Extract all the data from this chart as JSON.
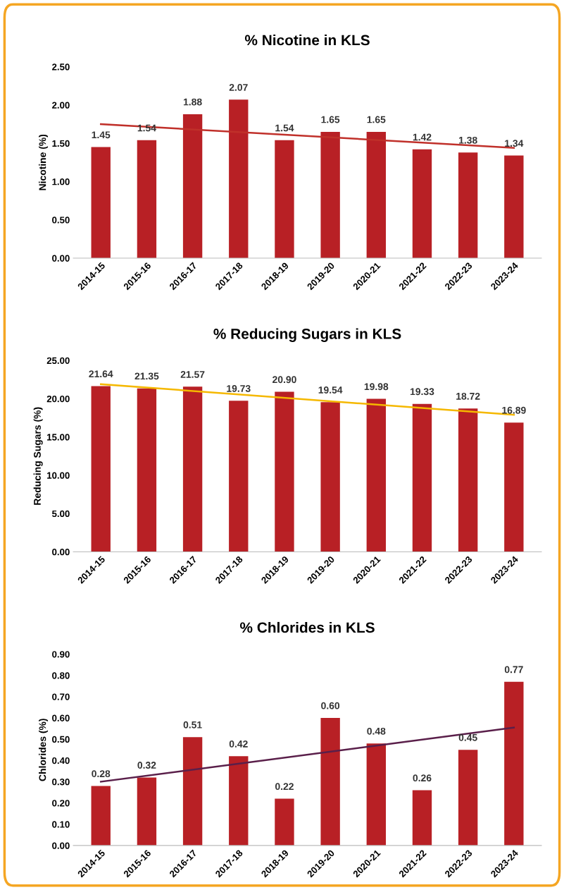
{
  "chart_data": [
    {
      "type": "bar",
      "title": "% Nicotine in KLS",
      "ylabel": "Nicotine (%)",
      "categories": [
        "2014-15",
        "2015-16",
        "2016-17",
        "2017-18",
        "2018-19",
        "2019-20",
        "2020-21",
        "2021-22",
        "2022-23",
        "2023-24"
      ],
      "series": [
        {
          "color": "#b82025",
          "values": [
            1.45,
            1.54,
            1.88,
            2.07,
            1.54,
            1.65,
            1.65,
            1.42,
            1.38,
            1.34
          ],
          "value_labels": [
            "1.45",
            "1.54",
            "1.88",
            "2.07",
            "1.54",
            "1.65",
            "1.65",
            "1.42",
            "1.38",
            "1.34"
          ]
        },
        {
          "type": "line",
          "color": "#c0302a",
          "x": [
            "2014-15",
            "2023-24"
          ],
          "values": [
            1.75,
            1.44
          ]
        }
      ],
      "ylim": [
        0,
        2.5
      ],
      "yticks": [
        {
          "value": 0,
          "label": "0.00"
        },
        {
          "value": 0.5,
          "label": "0.50"
        },
        {
          "value": 1,
          "label": "1.00"
        },
        {
          "value": 1.5,
          "label": "1.50"
        },
        {
          "value": 2,
          "label": "2.00"
        },
        {
          "value": 2.5,
          "label": "2.50"
        }
      ],
      "grid": false,
      "legend": false
    },
    {
      "type": "bar",
      "title": "% Reducing Sugars in KLS",
      "ylabel": "Reducing Sugars (%)",
      "categories": [
        "2014-15",
        "2015-16",
        "2016-17",
        "2017-18",
        "2018-19",
        "2019-20",
        "2020-21",
        "2021-22",
        "2022-23",
        "2023-24"
      ],
      "series": [
        {
          "color": "#b82025",
          "values": [
            21.64,
            21.35,
            21.57,
            19.73,
            20.9,
            19.54,
            19.98,
            19.33,
            18.72,
            16.89
          ],
          "value_labels": [
            "21.64",
            "21.35",
            "21.57",
            "19.73",
            "20.90",
            "19.54",
            "19.98",
            "19.33",
            "18.72",
            "16.89"
          ]
        },
        {
          "type": "line",
          "color": "#f5b800",
          "x": [
            "2014-15",
            "2023-24"
          ],
          "values": [
            21.9,
            17.9
          ]
        }
      ],
      "ylim": [
        0,
        25
      ],
      "yticks": [
        {
          "value": 0,
          "label": "0.00"
        },
        {
          "value": 5,
          "label": "5.00"
        },
        {
          "value": 10,
          "label": "10.00"
        },
        {
          "value": 15,
          "label": "15.00"
        },
        {
          "value": 20,
          "label": "20.00"
        },
        {
          "value": 25,
          "label": "25.00"
        }
      ],
      "grid": false,
      "legend": false
    },
    {
      "type": "bar",
      "title": "% Chlorides in KLS",
      "ylabel": "Chlorides (%)",
      "categories": [
        "2014-15",
        "2015-16",
        "2016-17",
        "2017-18",
        "2018-19",
        "2019-20",
        "2020-21",
        "2021-22",
        "2022-23",
        "2023-24"
      ],
      "series": [
        {
          "color": "#b82025",
          "values": [
            0.28,
            0.32,
            0.51,
            0.42,
            0.22,
            0.6,
            0.48,
            0.26,
            0.45,
            0.77
          ],
          "value_labels": [
            "0.28",
            "0.32",
            "0.51",
            "0.42",
            "0.22",
            "0.60",
            "0.48",
            "0.26",
            "0.45",
            "0.77"
          ]
        },
        {
          "type": "line",
          "color": "#5a1f4a",
          "x": [
            "2014-15",
            "2023-24"
          ],
          "values": [
            0.3,
            0.555
          ]
        }
      ],
      "ylim": [
        0,
        0.9
      ],
      "yticks": [
        {
          "value": 0,
          "label": "0.00"
        },
        {
          "value": 0.1,
          "label": "0.10"
        },
        {
          "value": 0.2,
          "label": "0.20"
        },
        {
          "value": 0.3,
          "label": "0.30"
        },
        {
          "value": 0.4,
          "label": "0.40"
        },
        {
          "value": 0.5,
          "label": "0.50"
        },
        {
          "value": 0.6,
          "label": "0.60"
        },
        {
          "value": 0.7,
          "label": "0.70"
        },
        {
          "value": 0.8,
          "label": "0.80"
        },
        {
          "value": 0.9,
          "label": "0.90"
        }
      ],
      "grid": false,
      "legend": false
    }
  ]
}
